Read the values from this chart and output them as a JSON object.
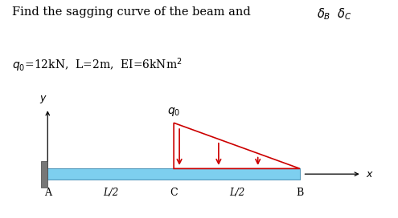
{
  "title_text": "Find the sagging curve of the beam and ",
  "title_delta": "$\\delta_B$  $\\delta_C$",
  "param_text": "$q_0$=12kN,  L=2m,  EI=6kNm$^2$",
  "beam_color": "#7dcfef",
  "beam_edge_color": "#5599bb",
  "wall_color": "#777777",
  "load_color": "#cc0000",
  "background_color": "#ffffff",
  "figsize": [
    4.95,
    2.72
  ],
  "dpi": 100
}
